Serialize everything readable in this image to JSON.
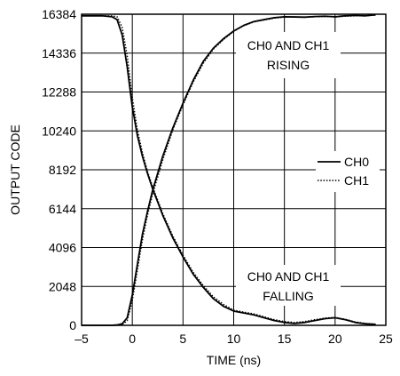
{
  "chart_data": {
    "type": "line",
    "xlabel": "TIME (ns)",
    "ylabel": "OUTPUT CODE",
    "xlim": [
      -5,
      25
    ],
    "ylim": [
      0,
      16384
    ],
    "xticks": [
      -5,
      0,
      5,
      10,
      15,
      20,
      25
    ],
    "xtick_labels": [
      "–5",
      "0",
      "5",
      "10",
      "15",
      "20",
      "25"
    ],
    "yticks": [
      0,
      2048,
      4096,
      6144,
      8192,
      10240,
      12288,
      14336,
      16384
    ],
    "ytick_labels": [
      "0",
      "2048",
      "4096",
      "6144",
      "8192",
      "10240",
      "12288",
      "14336",
      "16384"
    ],
    "grid": true,
    "legend": {
      "placement": "right",
      "entries": [
        {
          "label": "CH0",
          "style": "solid"
        },
        {
          "label": "CH1",
          "style": "dotted"
        }
      ]
    },
    "annotations": [
      {
        "lines": [
          "CH0 AND CH1",
          "RISING"
        ]
      },
      {
        "lines": [
          "CH0 AND CH1",
          "FALLING"
        ]
      }
    ],
    "series": [
      {
        "name": "CH0",
        "style": "solid",
        "trace": "rising",
        "x": [
          -5,
          -3,
          -2,
          -1.5,
          -1,
          -0.5,
          0,
          0.5,
          1,
          1.5,
          2,
          3,
          4,
          5,
          6,
          7,
          8,
          9,
          10,
          11,
          12,
          13,
          14,
          15,
          16,
          17,
          18,
          19,
          20,
          21,
          22,
          23,
          24
        ],
        "y": [
          0,
          0,
          0,
          20,
          80,
          400,
          1600,
          3200,
          4800,
          6000,
          7100,
          8900,
          10400,
          11700,
          12900,
          13900,
          14600,
          15100,
          15500,
          15800,
          16000,
          16100,
          16200,
          16250,
          16240,
          16230,
          16260,
          16280,
          16250,
          16300,
          16320,
          16300,
          16350
        ]
      },
      {
        "name": "CH1",
        "style": "dotted",
        "trace": "rising",
        "x": [
          -5,
          -3,
          -2,
          -1.5,
          -1,
          -0.5,
          0,
          0.5,
          1,
          1.5,
          2,
          3,
          4,
          5,
          6,
          7,
          8,
          9,
          10,
          11,
          12,
          13,
          14,
          15,
          16,
          17,
          18,
          19,
          20,
          21,
          22,
          23,
          24
        ],
        "y": [
          0,
          0,
          0,
          0,
          30,
          250,
          1300,
          2900,
          4500,
          5800,
          6900,
          8700,
          10300,
          11600,
          12800,
          13800,
          14550,
          15050,
          15480,
          15780,
          15980,
          16080,
          16180,
          16230,
          16230,
          16220,
          16250,
          16260,
          16240,
          16280,
          16300,
          16300,
          16340
        ]
      },
      {
        "name": "CH0",
        "style": "solid",
        "trace": "falling",
        "x": [
          -5,
          -3,
          -2,
          -1.5,
          -1,
          -0.5,
          0,
          0.5,
          1,
          1.5,
          2,
          3,
          4,
          5,
          6,
          7,
          8,
          9,
          10,
          11,
          12,
          13,
          14,
          15,
          16,
          17,
          18,
          19,
          20,
          21,
          22,
          23,
          24
        ],
        "y": [
          16300,
          16300,
          16250,
          16100,
          15300,
          13600,
          11500,
          10000,
          8900,
          8000,
          7200,
          5800,
          4600,
          3600,
          2700,
          2000,
          1400,
          1000,
          750,
          650,
          550,
          400,
          250,
          150,
          100,
          150,
          250,
          350,
          400,
          300,
          150,
          80,
          50
        ]
      },
      {
        "name": "CH1",
        "style": "dotted",
        "trace": "falling",
        "x": [
          -5,
          -3,
          -2,
          -1.5,
          -1,
          -0.5,
          0,
          0.5,
          1,
          1.5,
          2,
          3,
          4,
          5,
          6,
          7,
          8,
          9,
          10,
          11,
          12,
          13,
          14,
          15,
          16,
          17,
          18,
          19,
          20,
          21,
          22,
          23,
          24
        ],
        "y": [
          16300,
          16300,
          16300,
          16250,
          15700,
          14200,
          12000,
          10300,
          9100,
          8100,
          7300,
          5900,
          4700,
          3700,
          2800,
          2100,
          1500,
          1100,
          800,
          700,
          600,
          450,
          300,
          200,
          150,
          200,
          300,
          380,
          420,
          320,
          180,
          100,
          60
        ]
      }
    ]
  }
}
